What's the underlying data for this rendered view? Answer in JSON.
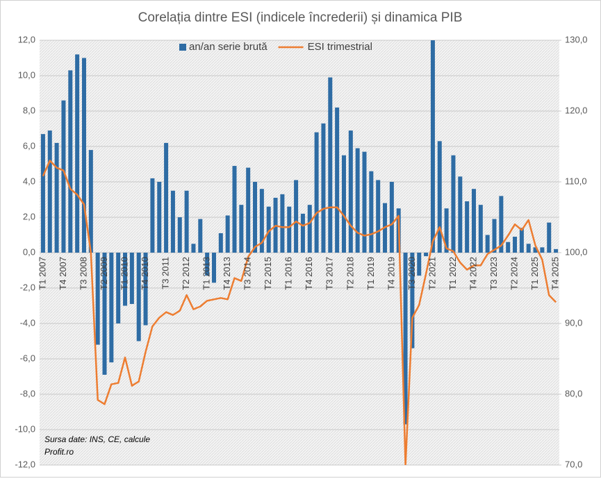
{
  "chart_data": {
    "type": "bar-line",
    "title": "Corelația dintre ESI  (indicele încrederii) și dinamica PIB",
    "categories": [
      "T1 2007",
      null,
      null,
      "T4 2007",
      null,
      null,
      "T3 2008",
      null,
      null,
      "T2 2009",
      null,
      null,
      "T1 2010",
      null,
      null,
      "T4 2010",
      null,
      null,
      "T3 2011",
      null,
      null,
      "T2 2012",
      null,
      null,
      "T1 2013",
      null,
      null,
      "T4 2013",
      null,
      null,
      "T3 2014",
      null,
      null,
      "T2 2015",
      null,
      null,
      "T1 2016",
      null,
      null,
      "T4 2016",
      null,
      null,
      "T3 2017",
      null,
      null,
      "T2 2018",
      null,
      null,
      "T1 2019",
      null,
      null,
      "T4 2019",
      null,
      null,
      "T3 2020",
      null,
      null,
      "T2 2021",
      null,
      null,
      "T1 2022",
      null,
      null,
      "T4 2022",
      null,
      null,
      "T3 2023",
      null,
      null,
      "T2 2024",
      null,
      null,
      "T1 2025",
      null,
      null,
      "T4 2025"
    ],
    "series": [
      {
        "name": "an/an serie brută",
        "type": "bar",
        "color": "#2e6ca4",
        "values": [
          6.7,
          6.9,
          6.2,
          8.6,
          10.3,
          11.2,
          11.0,
          5.8,
          -5.2,
          -6.9,
          -6.2,
          -4.0,
          -3.0,
          -2.9,
          -5.0,
          -4.1,
          4.2,
          4.0,
          6.2,
          3.5,
          2.0,
          3.5,
          0.5,
          1.9,
          -1.3,
          -1.7,
          1.1,
          2.1,
          4.9,
          2.7,
          4.8,
          4.0,
          3.6,
          2.6,
          3.1,
          3.3,
          2.6,
          4.1,
          2.2,
          2.7,
          6.8,
          7.3,
          9.9,
          8.2,
          5.5,
          6.9,
          5.9,
          5.7,
          4.6,
          4.1,
          2.8,
          4.0,
          2.5,
          -9.7,
          -5.4,
          -1.3,
          -0.2,
          13.0,
          6.3,
          2.5,
          5.5,
          4.3,
          2.9,
          3.6,
          2.7,
          1.0,
          1.9,
          3.2,
          0.6,
          0.9,
          1.4,
          0.5,
          0.3,
          0.3,
          1.7,
          0.2
        ]
      },
      {
        "name": "ESI trimestrial",
        "type": "line",
        "axis": "y2",
        "color": "#ed7d31",
        "values": [
          110.8,
          113.0,
          112.0,
          111.6,
          109.0,
          108.2,
          106.8,
          100.0,
          79.2,
          78.6,
          81.4,
          81.6,
          85.2,
          81.2,
          81.8,
          86.0,
          89.6,
          90.8,
          91.6,
          91.2,
          91.8,
          94.0,
          92.0,
          92.4,
          93.2,
          93.4,
          93.6,
          93.4,
          96.4,
          96.0,
          99.4,
          100.8,
          101.4,
          103.0,
          103.8,
          103.6,
          103.6,
          104.4,
          103.8,
          104.2,
          105.6,
          106.2,
          106.4,
          106.4,
          105.2,
          103.8,
          102.8,
          102.4,
          102.6,
          103.0,
          103.6,
          104.0,
          105.2,
          70.0,
          90.8,
          92.6,
          97.0,
          101.6,
          103.6,
          100.6,
          100.2,
          98.6,
          97.6,
          98.2,
          98.2,
          99.8,
          100.4,
          101.0,
          102.4,
          104.0,
          103.2,
          104.6,
          101.0,
          99.0,
          94.0,
          93.0
        ]
      }
    ],
    "ylim": [
      -12,
      12
    ],
    "yticks": [
      {
        "value": -12,
        "label": "-12,0"
      },
      {
        "value": -10,
        "label": "-10,0"
      },
      {
        "value": -8,
        "label": "-8,0"
      },
      {
        "value": -6,
        "label": "-6,0"
      },
      {
        "value": -4,
        "label": "-4,0"
      },
      {
        "value": -2,
        "label": "-2,0"
      },
      {
        "value": 0,
        "label": "0,0"
      },
      {
        "value": 2,
        "label": "2,0"
      },
      {
        "value": 4,
        "label": "4,0"
      },
      {
        "value": 6,
        "label": "6,0"
      },
      {
        "value": 8,
        "label": "8,0"
      },
      {
        "value": 10,
        "label": "10,0"
      },
      {
        "value": 12,
        "label": "12,0"
      }
    ],
    "y2lim": [
      70,
      130
    ],
    "y2ticks": [
      {
        "value": 70,
        "label": "70,0"
      },
      {
        "value": 80,
        "label": "80,0"
      },
      {
        "value": 90,
        "label": "90,0"
      },
      {
        "value": 100,
        "label": "100,0"
      },
      {
        "value": 110,
        "label": "110,0"
      },
      {
        "value": 120,
        "label": "120,0"
      },
      {
        "value": 130,
        "label": "130,0"
      }
    ],
    "grid": true,
    "legend": "top",
    "annotations": [
      "Sursa date: INS, CE, calcule",
      "Profit.ro"
    ]
  }
}
